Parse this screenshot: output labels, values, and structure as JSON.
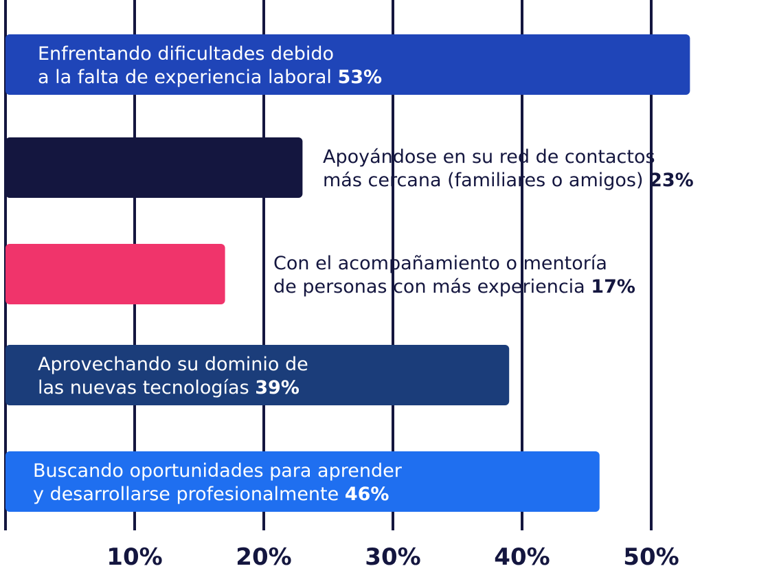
{
  "chart_data": {
    "type": "bar",
    "orientation": "horizontal",
    "categories": [
      "Enfrentando dificultades debido a la falta de experiencia laboral",
      "Apoyándose en su red de contactos más cercana (familiares o amigos)",
      "Con el acompañamiento o mentoría de personas con más experiencia",
      "Aprovechando su dominio de las nuevas tecnologías",
      "Buscando oportunidades para aprender y desarrollarse profesionalmente"
    ],
    "values": [
      53,
      23,
      17,
      39,
      46
    ],
    "bars": [
      {
        "line1": "Enfrentando dificultades debido",
        "line2": "a la falta de experiencia laboral",
        "value_label": "53%",
        "value": 53,
        "color": "#1f45b8",
        "label_inside": true
      },
      {
        "line1": "Apoyándose en su red de contactos",
        "line2": "más cercana (familiares o amigos)",
        "value_label": "23%",
        "value": 23,
        "color": "#14163f",
        "label_inside": false
      },
      {
        "line1": "Con el acompañamiento o mentoría",
        "line2": "de personas con más experiencia",
        "value_label": "17%",
        "value": 17,
        "color": "#f0346b",
        "label_inside": false
      },
      {
        "line1": "Aprovechando su dominio de",
        "line2": "las nuevas tecnologías",
        "value_label": "39%",
        "value": 39,
        "color": "#1b3d7a",
        "label_inside": true
      },
      {
        "line1": "Buscando oportunidades para aprender",
        "line2": "y desarrollarse profesionalmente",
        "value_label": "46%",
        "value": 46,
        "color": "#1f6ff0",
        "label_inside": true
      }
    ],
    "ticks": [
      {
        "value": 10,
        "label": "10%"
      },
      {
        "value": 20,
        "label": "20%"
      },
      {
        "value": 30,
        "label": "30%"
      },
      {
        "value": 40,
        "label": "40%"
      },
      {
        "value": 50,
        "label": "50%"
      }
    ],
    "xlim": [
      0,
      53
    ],
    "grid": true,
    "title": "",
    "xlabel": "",
    "ylabel": ""
  },
  "colors": {
    "grid": "#14163f",
    "text_dark": "#14163f",
    "text_light": "#ffffff"
  }
}
